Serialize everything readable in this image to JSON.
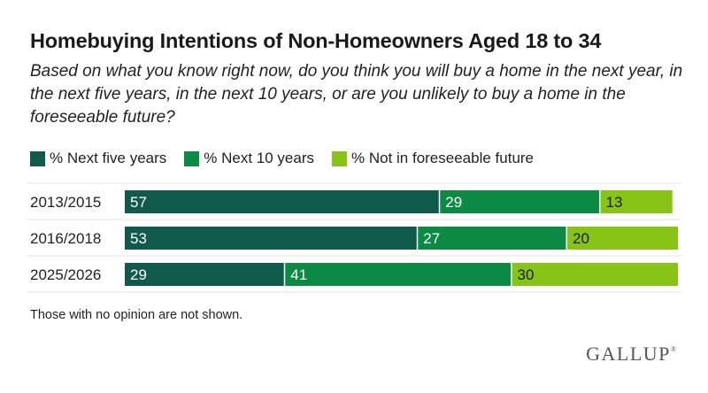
{
  "chart_data": {
    "type": "bar",
    "orientation": "horizontal",
    "stacked": true,
    "title": "Homebuying Intentions of Non-Homeowners Aged 18 to 34",
    "subtitle": "Based on what you know right now, do you think you will buy a home in the next year, in the next five years, in the next 10 years, or are you unlikely to buy a home in the foreseeable future?",
    "categories": [
      "2013/2015",
      "2016/2018",
      "2025/2026"
    ],
    "series": [
      {
        "name": "% Next five years",
        "color": "#0f5a4b",
        "label_color": "#ffffff",
        "values": [
          57,
          53,
          29
        ]
      },
      {
        "name": "% Next 10 years",
        "color": "#0b8a44",
        "label_color": "#ffffff",
        "values": [
          29,
          27,
          41
        ]
      },
      {
        "name": "% Not in foreseeable future",
        "color": "#88c416",
        "label_color": "#1a1a1a",
        "values": [
          13,
          20,
          30
        ]
      }
    ],
    "xlim": [
      0,
      100
    ],
    "xlabel": "",
    "ylabel": "",
    "grid": false,
    "legend_position": "top-left"
  },
  "note": "Those with no opinion are not shown.",
  "brand": "GALLUP",
  "brand_mark": "®"
}
